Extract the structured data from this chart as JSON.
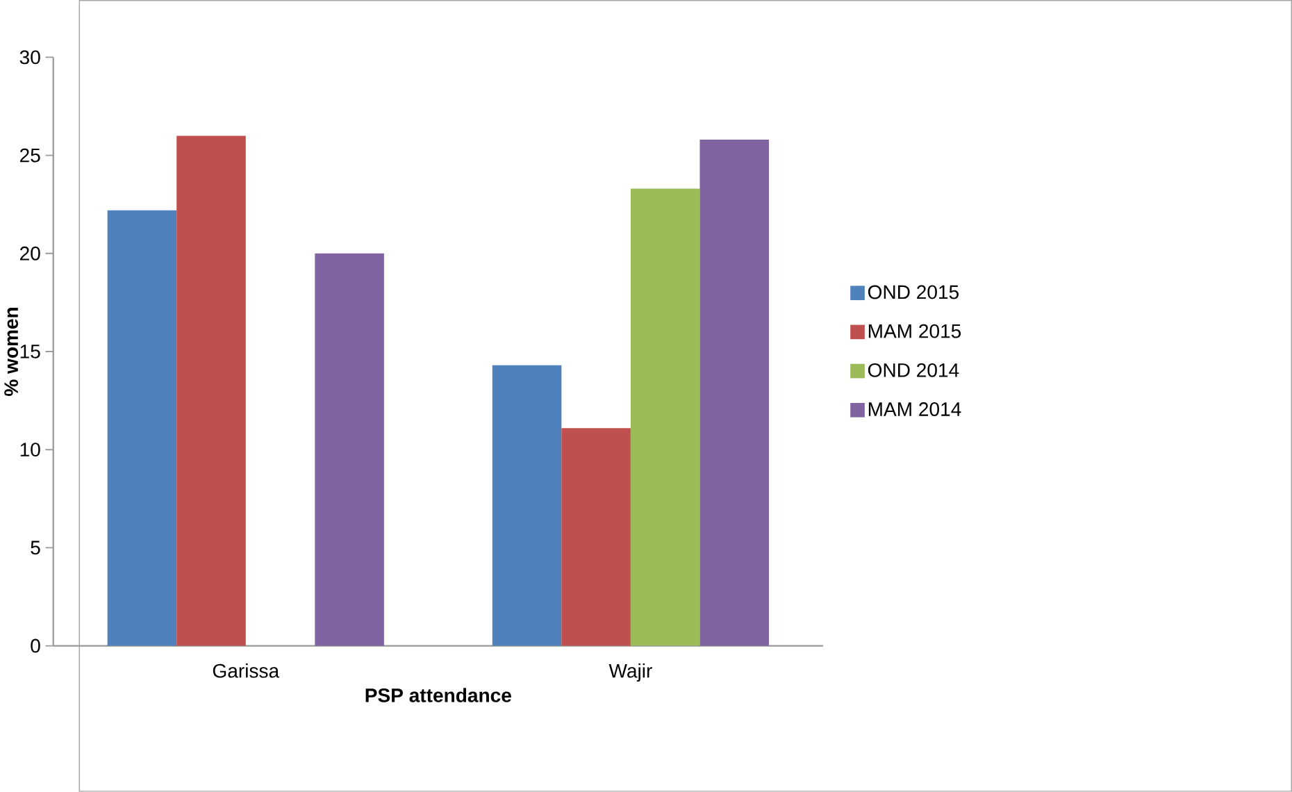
{
  "chart_data": {
    "type": "bar",
    "xlabel": "PSP attendance",
    "ylabel": "% women",
    "categories": [
      "Garissa",
      "Wajir"
    ],
    "series": [
      {
        "name": "OND 2015",
        "color": "#4f81bd",
        "values": [
          22.2,
          14.3
        ]
      },
      {
        "name": "MAM 2015",
        "color": "#c0504d",
        "values": [
          26.0,
          11.1
        ]
      },
      {
        "name": "OND 2014",
        "color": "#9bbb59",
        "values": [
          null,
          23.3
        ]
      },
      {
        "name": "MAM 2014",
        "color": "#8064a2",
        "values": [
          20.0,
          25.8
        ]
      }
    ],
    "ylim": [
      0,
      30
    ],
    "yticks": [
      0,
      5,
      10,
      15,
      20,
      25,
      30
    ],
    "grid": false,
    "legend": "right"
  }
}
